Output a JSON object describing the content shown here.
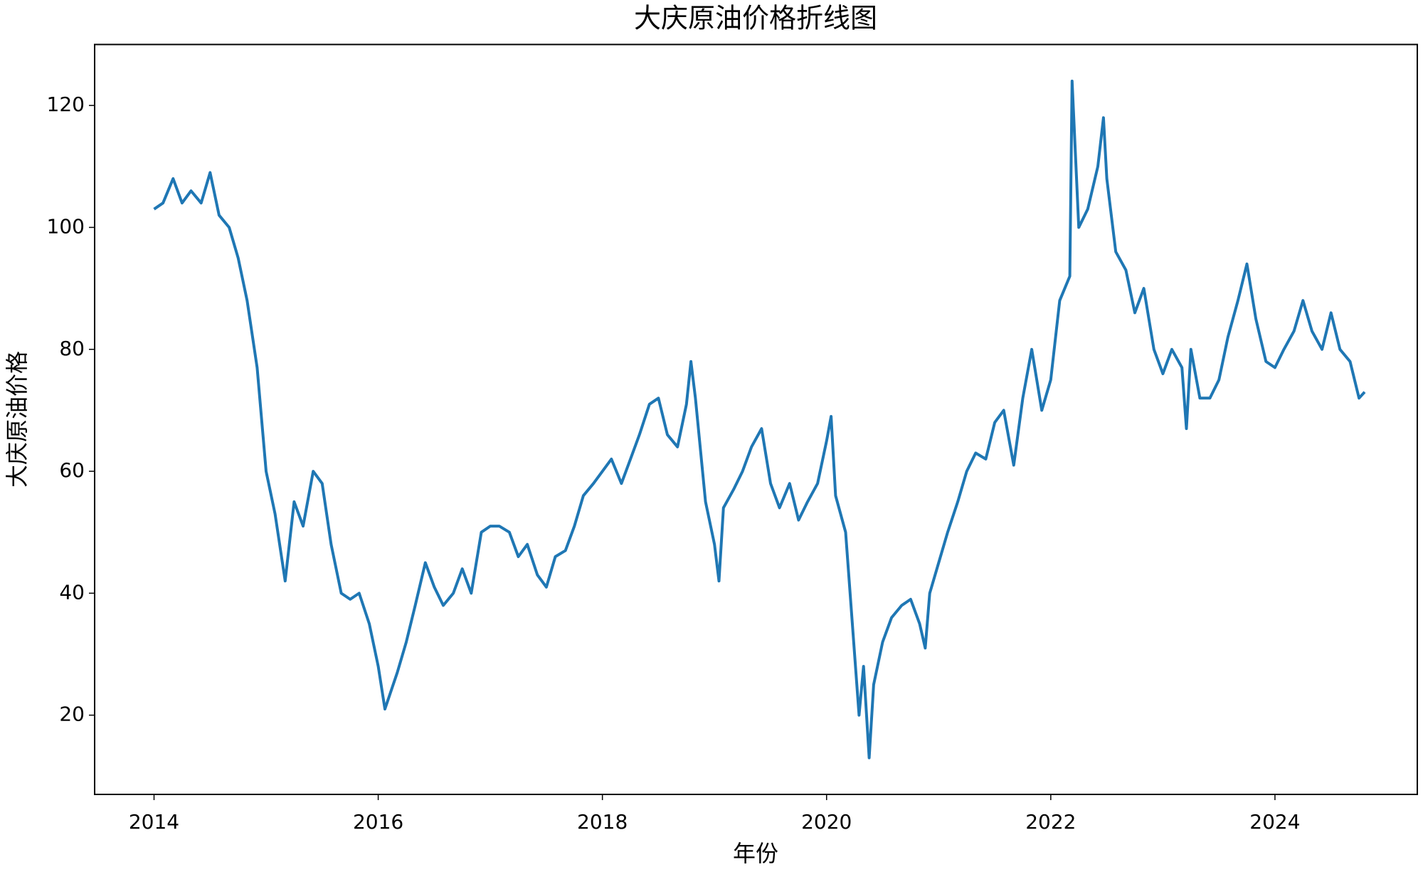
{
  "chart_data": {
    "type": "line",
    "title": "大庆原油价格折线图",
    "xlabel": "年份",
    "ylabel": "大庆原油价格",
    "color": "#1f77b4",
    "x": [
      2014.0,
      2014.08,
      2014.17,
      2014.25,
      2014.33,
      2014.42,
      2014.5,
      2014.58,
      2014.67,
      2014.75,
      2014.83,
      2014.92,
      2015.0,
      2015.08,
      2015.17,
      2015.25,
      2015.33,
      2015.42,
      2015.5,
      2015.58,
      2015.67,
      2015.75,
      2015.83,
      2015.92,
      2016.0,
      2016.06,
      2016.17,
      2016.25,
      2016.33,
      2016.42,
      2016.5,
      2016.58,
      2016.67,
      2016.75,
      2016.83,
      2016.92,
      2017.0,
      2017.08,
      2017.17,
      2017.25,
      2017.33,
      2017.42,
      2017.5,
      2017.58,
      2017.67,
      2017.75,
      2017.83,
      2017.92,
      2018.0,
      2018.08,
      2018.17,
      2018.25,
      2018.33,
      2018.42,
      2018.5,
      2018.58,
      2018.67,
      2018.75,
      2018.79,
      2018.83,
      2018.92,
      2019.0,
      2019.04,
      2019.08,
      2019.17,
      2019.25,
      2019.33,
      2019.42,
      2019.5,
      2019.58,
      2019.67,
      2019.75,
      2019.83,
      2019.92,
      2020.0,
      2020.04,
      2020.08,
      2020.17,
      2020.25,
      2020.29,
      2020.33,
      2020.38,
      2020.42,
      2020.5,
      2020.58,
      2020.67,
      2020.75,
      2020.83,
      2020.88,
      2020.92,
      2021.0,
      2021.08,
      2021.17,
      2021.25,
      2021.33,
      2021.42,
      2021.5,
      2021.58,
      2021.67,
      2021.75,
      2021.83,
      2021.92,
      2022.0,
      2022.08,
      2022.17,
      2022.19,
      2022.25,
      2022.33,
      2022.42,
      2022.47,
      2022.5,
      2022.58,
      2022.67,
      2022.75,
      2022.83,
      2022.92,
      2023.0,
      2023.08,
      2023.17,
      2023.21,
      2023.25,
      2023.33,
      2023.42,
      2023.5,
      2023.58,
      2023.67,
      2023.75,
      2023.83,
      2023.92,
      2024.0,
      2024.08,
      2024.17,
      2024.25,
      2024.33,
      2024.42,
      2024.5,
      2024.58,
      2024.67,
      2024.75,
      2024.8
    ],
    "values": [
      103,
      104,
      108,
      104,
      106,
      104,
      109,
      102,
      100,
      95,
      88,
      77,
      60,
      53,
      42,
      55,
      51,
      60,
      58,
      48,
      40,
      39,
      40,
      35,
      28,
      21,
      27,
      32,
      38,
      45,
      41,
      38,
      40,
      44,
      40,
      50,
      51,
      51,
      50,
      46,
      48,
      43,
      41,
      46,
      47,
      51,
      56,
      58,
      60,
      62,
      58,
      62,
      66,
      71,
      72,
      66,
      64,
      71,
      78,
      72,
      55,
      48,
      42,
      54,
      57,
      60,
      64,
      67,
      58,
      54,
      58,
      52,
      55,
      58,
      65,
      69,
      56,
      50,
      30,
      20,
      28,
      13,
      25,
      32,
      36,
      38,
      39,
      35,
      31,
      40,
      45,
      50,
      55,
      60,
      63,
      62,
      68,
      70,
      61,
      72,
      80,
      70,
      75,
      88,
      92,
      124,
      100,
      103,
      110,
      118,
      108,
      96,
      93,
      86,
      90,
      80,
      76,
      80,
      77,
      67,
      80,
      72,
      72,
      75,
      82,
      88,
      94,
      85,
      78,
      77,
      80,
      83,
      88,
      83,
      80,
      86,
      80,
      78,
      72,
      73
    ],
    "xlim": [
      2013.47,
      2025.27
    ],
    "xticks": [
      2014,
      2016,
      2018,
      2020,
      2022,
      2024
    ],
    "ylim": [
      7,
      130
    ],
    "yticks": [
      20,
      40,
      60,
      80,
      100,
      120
    ]
  }
}
